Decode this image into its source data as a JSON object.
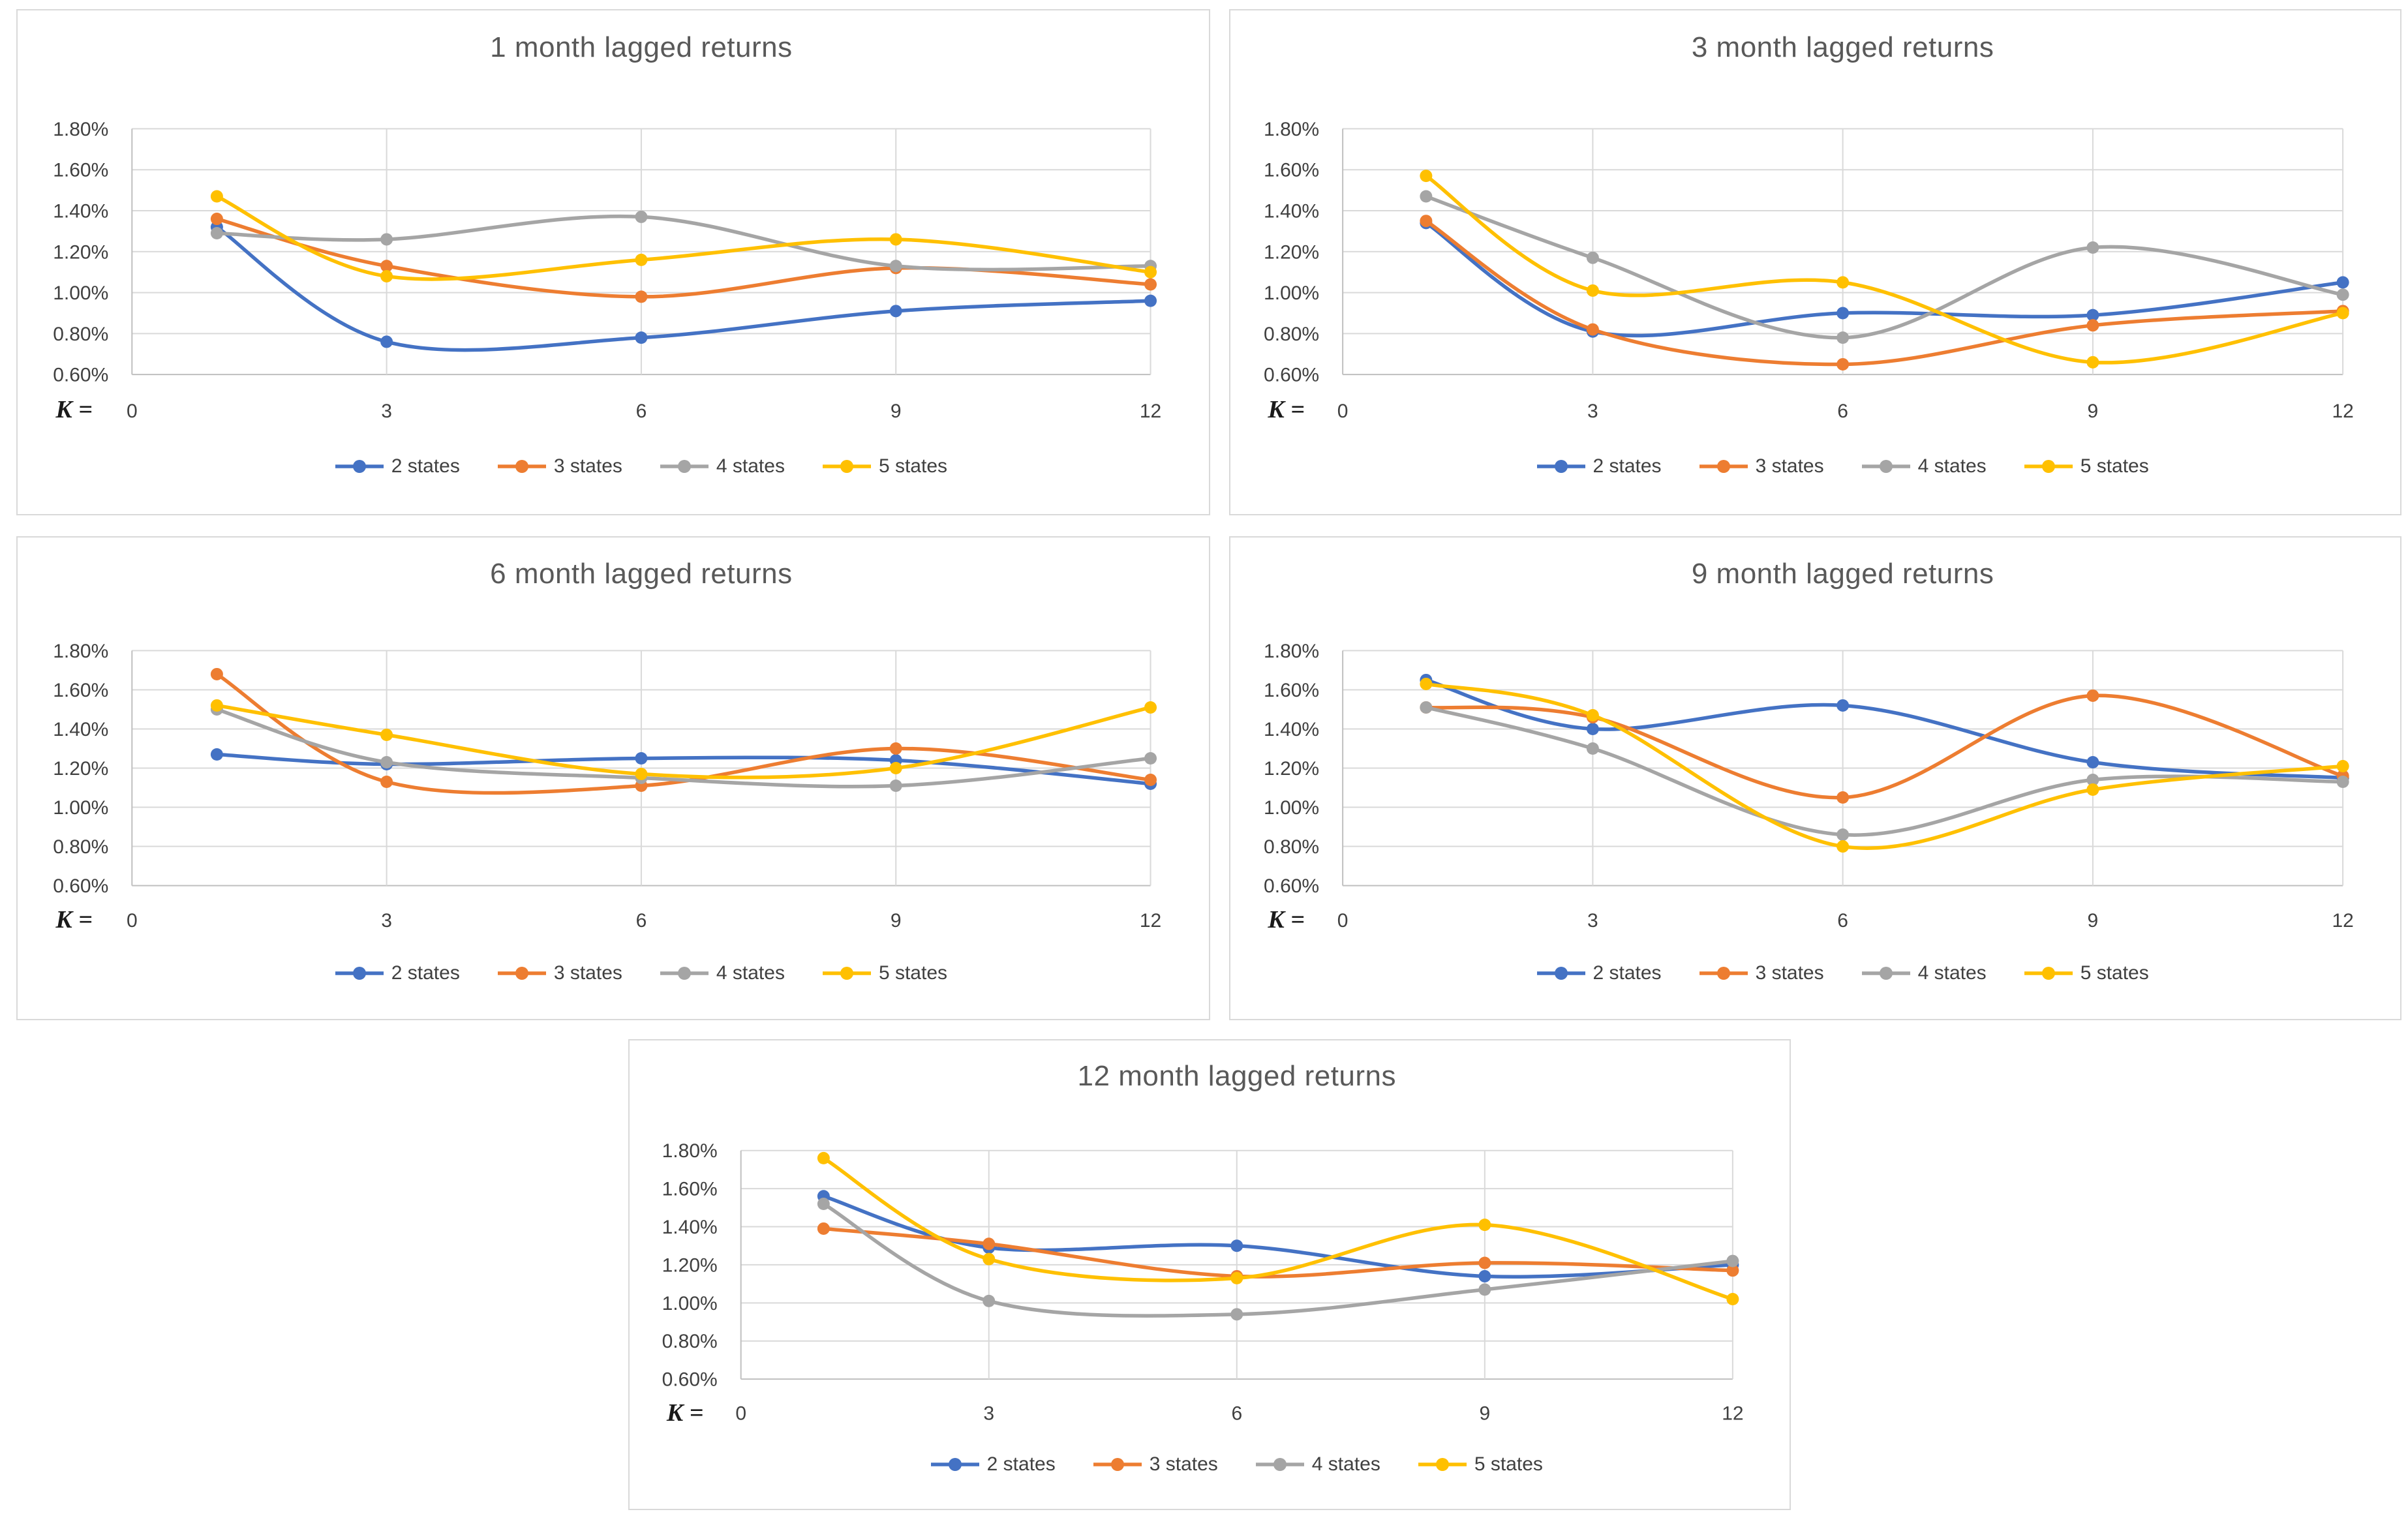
{
  "figure": {
    "k_label": "K =",
    "colors": {
      "accent_blue": "#4472C4",
      "accent_orange": "#ED7D31",
      "accent_gray": "#A5A5A5",
      "accent_yellow": "#FFC000",
      "gridline": "#d9d9d9",
      "axis_line": "#bfbfbf",
      "title_text": "#595959",
      "tick_text": "#404040"
    }
  },
  "chart_data": [
    {
      "type": "line",
      "smooth": true,
      "grid": true,
      "legend_position": "bottom",
      "title": "1 month lagged returns",
      "x_label": "K =",
      "x": [
        1,
        3,
        6,
        9,
        12
      ],
      "xlim": [
        0,
        12
      ],
      "x_ticks": [
        0,
        3,
        6,
        9,
        12
      ],
      "ylim": [
        0.6,
        1.8
      ],
      "y_ticks": [
        "1.80%",
        "1.60%",
        "1.40%",
        "1.20%",
        "1.00%",
        "0.80%",
        "0.60%"
      ],
      "y_unit": "percent",
      "series": [
        {
          "name": "2 states",
          "color": "#4472C4",
          "values": [
            1.32,
            0.76,
            0.78,
            0.91,
            0.96
          ]
        },
        {
          "name": "3 states",
          "color": "#ED7D31",
          "values": [
            1.36,
            1.13,
            0.98,
            1.12,
            1.04
          ]
        },
        {
          "name": "4 states",
          "color": "#A5A5A5",
          "values": [
            1.29,
            1.26,
            1.37,
            1.13,
            1.13
          ]
        },
        {
          "name": "5 states",
          "color": "#FFC000",
          "values": [
            1.47,
            1.08,
            1.16,
            1.26,
            1.1
          ]
        }
      ]
    },
    {
      "type": "line",
      "smooth": true,
      "grid": true,
      "legend_position": "bottom",
      "title": "3 month lagged returns",
      "x_label": "K =",
      "x": [
        1,
        3,
        6,
        9,
        12
      ],
      "xlim": [
        0,
        12
      ],
      "x_ticks": [
        0,
        3,
        6,
        9,
        12
      ],
      "ylim": [
        0.6,
        1.8
      ],
      "y_ticks": [
        "1.80%",
        "1.60%",
        "1.40%",
        "1.20%",
        "1.00%",
        "0.80%",
        "0.60%"
      ],
      "y_unit": "percent",
      "series": [
        {
          "name": "2 states",
          "color": "#4472C4",
          "values": [
            1.34,
            0.81,
            0.9,
            0.89,
            1.05
          ]
        },
        {
          "name": "3 states",
          "color": "#ED7D31",
          "values": [
            1.35,
            0.82,
            0.65,
            0.84,
            0.91
          ]
        },
        {
          "name": "4 states",
          "color": "#A5A5A5",
          "values": [
            1.47,
            1.17,
            0.78,
            1.22,
            0.99
          ]
        },
        {
          "name": "5 states",
          "color": "#FFC000",
          "values": [
            1.57,
            1.01,
            1.05,
            0.66,
            0.9
          ]
        }
      ]
    },
    {
      "type": "line",
      "smooth": true,
      "grid": true,
      "legend_position": "bottom",
      "title": "6 month lagged returns",
      "x_label": "K =",
      "x": [
        1,
        3,
        6,
        9,
        12
      ],
      "xlim": [
        0,
        12
      ],
      "x_ticks": [
        0,
        3,
        6,
        9,
        12
      ],
      "ylim": [
        0.6,
        1.8
      ],
      "y_ticks": [
        "1.80%",
        "1.60%",
        "1.40%",
        "1.20%",
        "1.00%",
        "0.80%",
        "0.60%"
      ],
      "y_unit": "percent",
      "series": [
        {
          "name": "2 states",
          "color": "#4472C4",
          "values": [
            1.27,
            1.22,
            1.25,
            1.24,
            1.12
          ]
        },
        {
          "name": "3 states",
          "color": "#ED7D31",
          "values": [
            1.68,
            1.13,
            1.11,
            1.3,
            1.14
          ]
        },
        {
          "name": "4 states",
          "color": "#A5A5A5",
          "values": [
            1.5,
            1.23,
            1.15,
            1.11,
            1.25
          ]
        },
        {
          "name": "5 states",
          "color": "#FFC000",
          "values": [
            1.52,
            1.37,
            1.17,
            1.2,
            1.51
          ]
        }
      ]
    },
    {
      "type": "line",
      "smooth": true,
      "grid": true,
      "legend_position": "bottom",
      "title": "9 month lagged returns",
      "x_label": "K =",
      "x": [
        1,
        3,
        6,
        9,
        12
      ],
      "xlim": [
        0,
        12
      ],
      "x_ticks": [
        0,
        3,
        6,
        9,
        12
      ],
      "ylim": [
        0.6,
        1.8
      ],
      "y_ticks": [
        "1.80%",
        "1.60%",
        "1.40%",
        "1.20%",
        "1.00%",
        "0.80%",
        "0.60%"
      ],
      "y_unit": "percent",
      "series": [
        {
          "name": "2 states",
          "color": "#4472C4",
          "values": [
            1.65,
            1.4,
            1.52,
            1.23,
            1.15
          ]
        },
        {
          "name": "3 states",
          "color": "#ED7D31",
          "values": [
            1.51,
            1.46,
            1.05,
            1.57,
            1.16
          ]
        },
        {
          "name": "4 states",
          "color": "#A5A5A5",
          "values": [
            1.51,
            1.3,
            0.86,
            1.14,
            1.13
          ]
        },
        {
          "name": "5 states",
          "color": "#FFC000",
          "values": [
            1.63,
            1.47,
            0.8,
            1.09,
            1.21
          ]
        }
      ]
    },
    {
      "type": "line",
      "smooth": true,
      "grid": true,
      "legend_position": "bottom",
      "title": "12 month lagged returns",
      "x_label": "K =",
      "x": [
        1,
        3,
        6,
        9,
        12
      ],
      "xlim": [
        0,
        12
      ],
      "x_ticks": [
        0,
        3,
        6,
        9,
        12
      ],
      "ylim": [
        0.6,
        1.8
      ],
      "y_ticks": [
        "1.80%",
        "1.60%",
        "1.40%",
        "1.20%",
        "1.00%",
        "0.80%",
        "0.60%"
      ],
      "y_unit": "percent",
      "series": [
        {
          "name": "2 states",
          "color": "#4472C4",
          "values": [
            1.56,
            1.29,
            1.3,
            1.14,
            1.2
          ]
        },
        {
          "name": "3 states",
          "color": "#ED7D31",
          "values": [
            1.39,
            1.31,
            1.14,
            1.21,
            1.17
          ]
        },
        {
          "name": "4 states",
          "color": "#A5A5A5",
          "values": [
            1.52,
            1.01,
            0.94,
            1.07,
            1.22
          ]
        },
        {
          "name": "5 states",
          "color": "#FFC000",
          "values": [
            1.76,
            1.23,
            1.13,
            1.41,
            1.02
          ]
        }
      ]
    }
  ]
}
